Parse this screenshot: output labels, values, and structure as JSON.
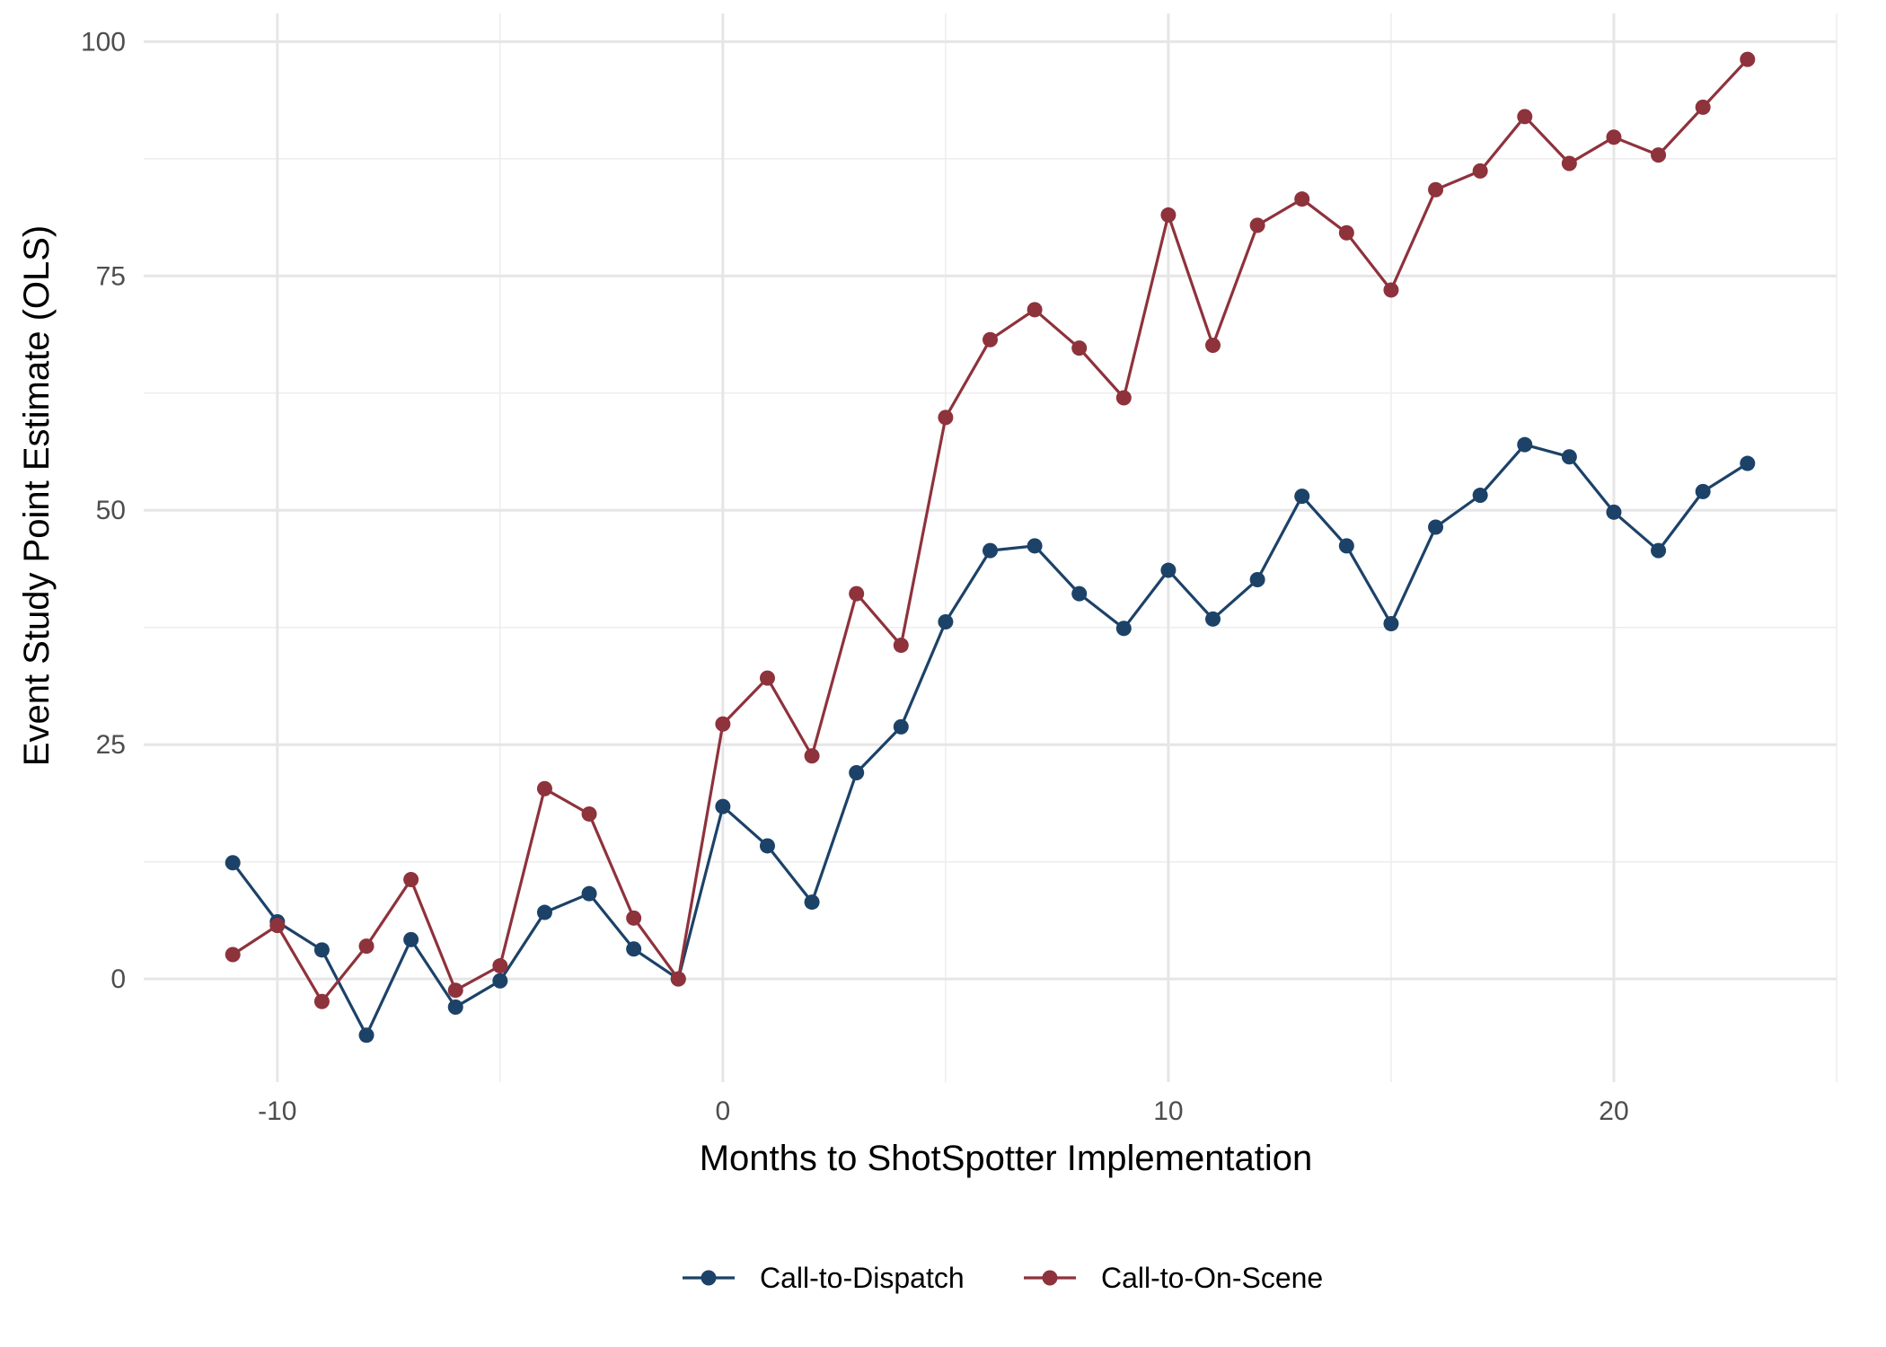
{
  "chart_data": {
    "type": "line",
    "title": "",
    "xlabel": "Months to ShotSpotter Implementation",
    "ylabel": "Event Study Point Estimate (OLS)",
    "xlim": [
      -13,
      25
    ],
    "ylim": [
      -11,
      103
    ],
    "x_ticks": [
      -10,
      0,
      10,
      20
    ],
    "x_tick_labels": [
      "-10",
      "0",
      "10",
      "20"
    ],
    "y_ticks": [
      0,
      25,
      50,
      75,
      100
    ],
    "y_tick_labels": [
      "0",
      "25",
      "50",
      "75",
      "100"
    ],
    "grid": true,
    "legend_position": "bottom",
    "x": [
      -11,
      -10,
      -9,
      -8,
      -7,
      -6,
      -5,
      -4,
      -3,
      -2,
      -1,
      0,
      1,
      2,
      3,
      4,
      5,
      6,
      7,
      8,
      9,
      10,
      11,
      12,
      13,
      14,
      15,
      16,
      17,
      18,
      19,
      20,
      21,
      22,
      23
    ],
    "series": [
      {
        "name": "Call-to-Dispatch",
        "color": "#1c4268",
        "values": [
          12.4,
          6.1,
          3.1,
          -6.0,
          4.2,
          -3.0,
          -0.2,
          7.1,
          9.1,
          3.2,
          0.0,
          18.4,
          14.2,
          8.2,
          22.0,
          26.9,
          38.1,
          45.7,
          46.2,
          41.1,
          37.4,
          43.6,
          38.4,
          42.6,
          51.5,
          46.2,
          37.9,
          48.2,
          51.6,
          57.0,
          55.7,
          49.8,
          45.7,
          52.0,
          55.0
        ]
      },
      {
        "name": "Call-to-On-Scene",
        "color": "#8e323c",
        "values": [
          2.6,
          5.7,
          -2.4,
          3.5,
          10.6,
          -1.2,
          1.4,
          20.3,
          17.6,
          6.5,
          0.0,
          27.2,
          32.1,
          23.8,
          41.1,
          35.6,
          59.9,
          68.2,
          71.4,
          67.3,
          62.0,
          81.5,
          67.6,
          80.4,
          83.2,
          79.6,
          73.5,
          84.2,
          86.2,
          92.0,
          87.0,
          89.8,
          87.9,
          93.0,
          98.1
        ]
      }
    ]
  }
}
